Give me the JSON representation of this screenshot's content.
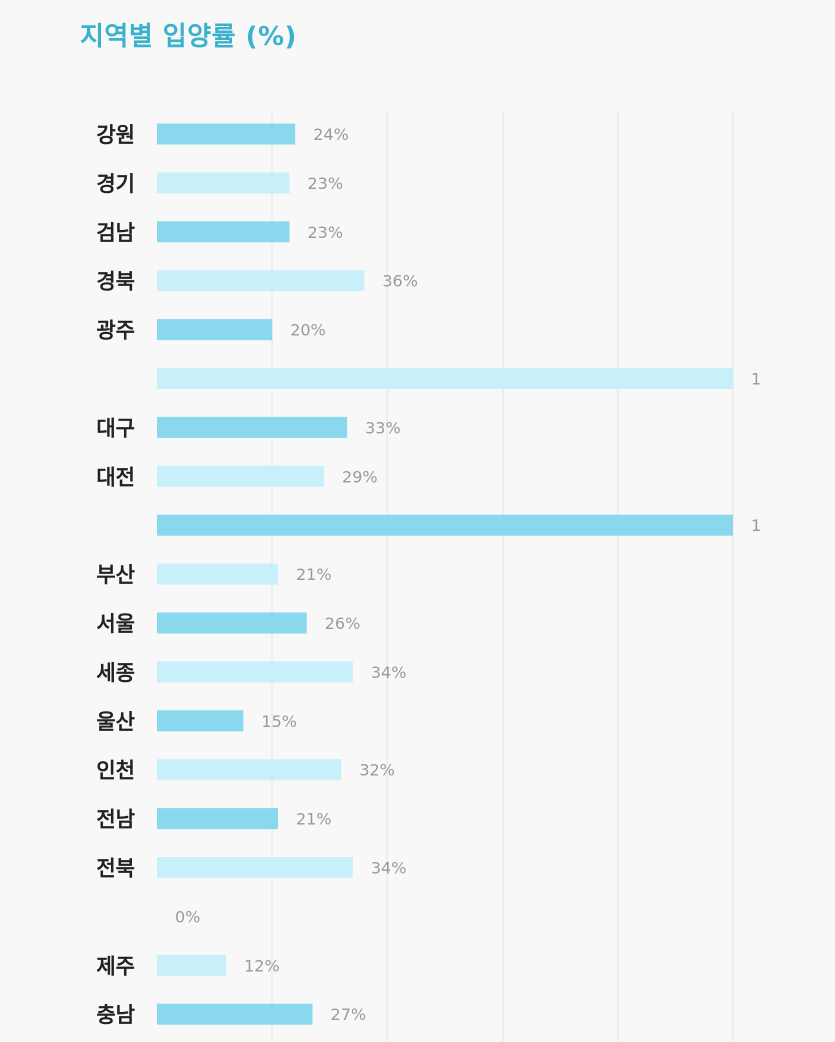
{
  "title": "지역별 입양률 (%)",
  "colors": {
    "title": "#3ab2cf",
    "bar_dark": "#8ad8ee",
    "bar_light": "#c8f0fb",
    "gridline": "#e4e4e4",
    "category_text": "#222222",
    "value_text": "#9a9a9a",
    "background": "#f8f8f8"
  },
  "chart_data": {
    "type": "bar",
    "orientation": "horizontal",
    "title": "지역별 입양률 (%)",
    "xlabel": "",
    "ylabel": "",
    "xlim": [
      0,
      1
    ],
    "grid": true,
    "legend": "none",
    "categories": [
      "강원",
      "경기",
      "검남",
      "경북",
      "광주",
      "",
      "대구",
      "대전",
      "",
      "부산",
      "서울",
      "세종",
      "울산",
      "인천",
      "전남",
      "전북",
      "",
      "제주",
      "충남"
    ],
    "values": [
      0.24,
      0.23,
      0.23,
      0.36,
      0.2,
      1,
      0.33,
      0.29,
      1,
      0.21,
      0.26,
      0.34,
      0.15,
      0.32,
      0.21,
      0.34,
      0,
      0.12,
      0.27
    ],
    "value_labels": [
      "24%",
      "23%",
      "23%",
      "36%",
      "20%",
      "1",
      "33%",
      "29%",
      "1",
      "21%",
      "26%",
      "34%",
      "15%",
      "32%",
      "21%",
      "34%",
      "0%",
      "12%",
      "27%"
    ]
  }
}
